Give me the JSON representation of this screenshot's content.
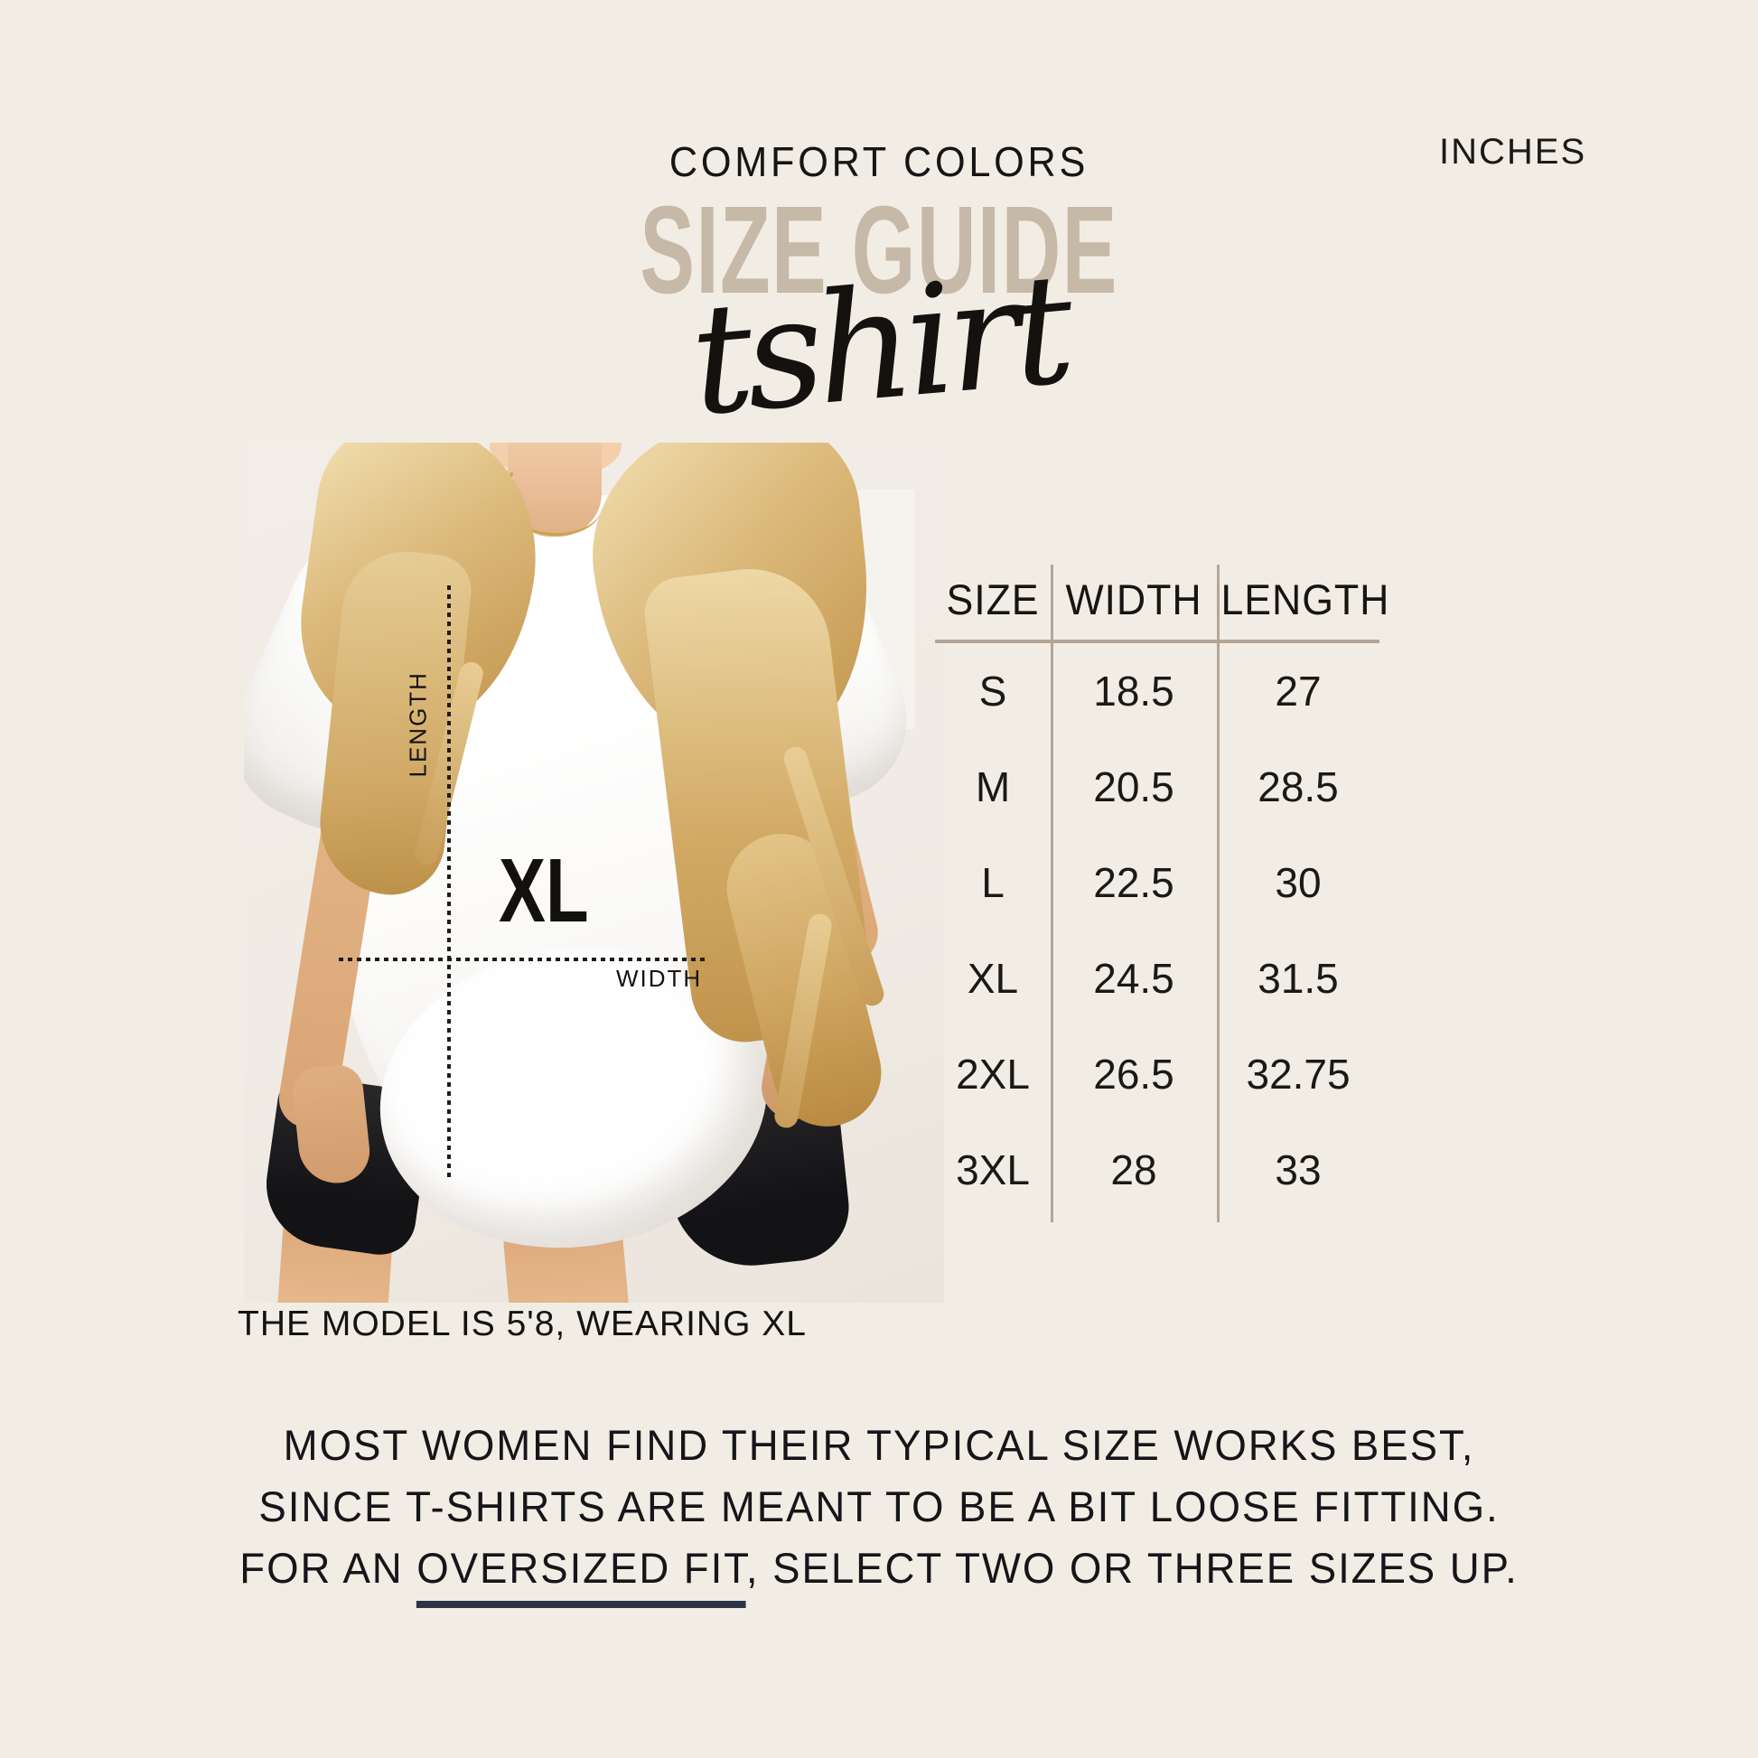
{
  "page": {
    "units_label": "INCHES",
    "background": "#f2ede4"
  },
  "header": {
    "brand": "COMFORT COLORS",
    "title": "SIZE GUIDE",
    "script": "tshirt",
    "title_color": "#c6b9a7"
  },
  "photo": {
    "length_label": "LENGTH",
    "width_label": "WIDTH",
    "size_tag": "XL",
    "caption": "THE MODEL IS 5'8, WEARING XL"
  },
  "size_table": {
    "columns": [
      "SIZE",
      "WIDTH",
      "LENGTH"
    ],
    "rows": [
      [
        "S",
        "18.5",
        "27"
      ],
      [
        "M",
        "20.5",
        "28.5"
      ],
      [
        "L",
        "22.5",
        "30"
      ],
      [
        "XL",
        "24.5",
        "31.5"
      ],
      [
        "2XL",
        "26.5",
        "32.75"
      ],
      [
        "3XL",
        "28",
        "33"
      ]
    ],
    "line_color": "#b3a697"
  },
  "footer": {
    "line1": "MOST WOMEN FIND THEIR TYPICAL SIZE WORKS BEST,",
    "line2": "SINCE T-SHIRTS ARE MEANT TO BE A BIT LOOSE FITTING.",
    "line3": {
      "prefix": "FOR AN ",
      "underlined": "OVERSIZED FIT",
      "suffix": ", SELECT TWO OR THREE SIZES UP."
    },
    "underline_color": "#2d3447",
    "chart_data": {
      "type": "table",
      "title": "COMFORT COLORS SIZE GUIDE — TSHIRT (INCHES)",
      "columns": [
        "SIZE",
        "WIDTH",
        "LENGTH"
      ],
      "rows": [
        [
          "S",
          18.5,
          27
        ],
        [
          "M",
          20.5,
          28.5
        ],
        [
          "L",
          22.5,
          30
        ],
        [
          "XL",
          24.5,
          31.5
        ],
        [
          "2XL",
          26.5,
          32.75
        ],
        [
          "3XL",
          28,
          33
        ]
      ]
    }
  }
}
